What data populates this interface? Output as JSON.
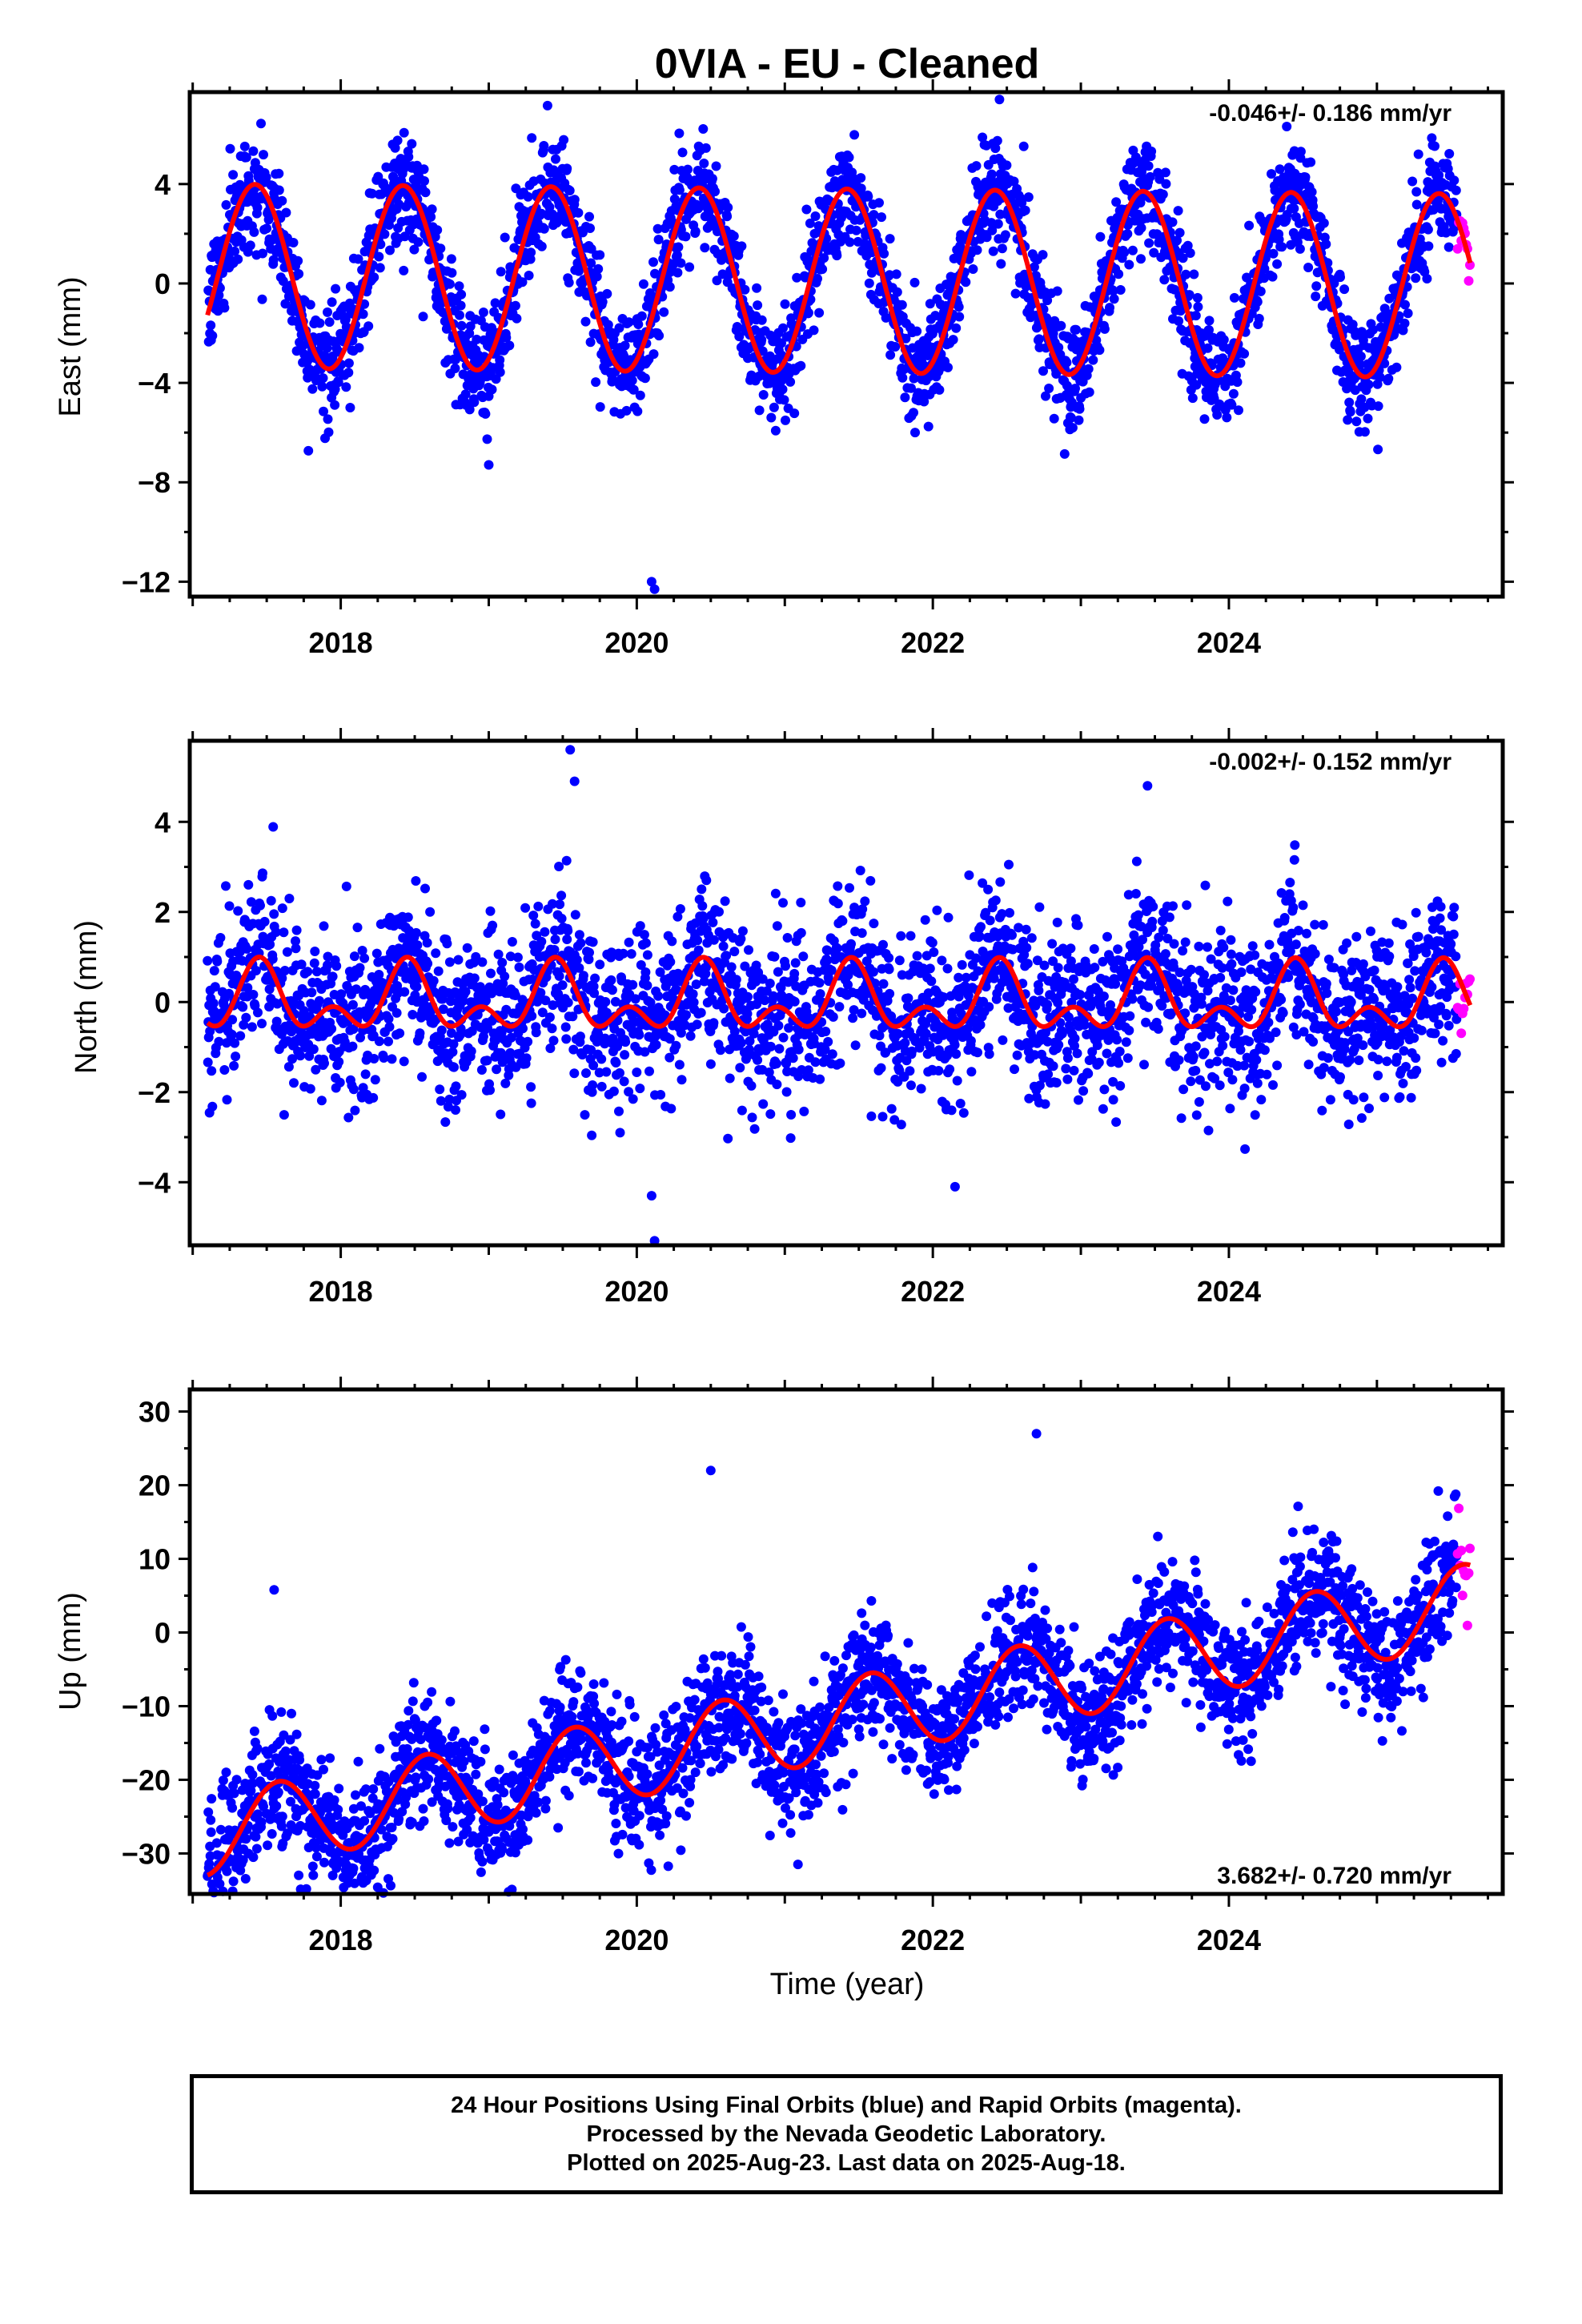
{
  "title": "0VIA  - EU - Cleaned",
  "xlabel": "Time (year)",
  "footer": {
    "line1": "24 Hour Positions Using Final Orbits (blue) and Rapid Orbits (magenta).",
    "line2": "Processed by the Nevada Geodetic Laboratory.",
    "line3": "Plotted on 2025-Aug-23. Last data on 2025-Aug-18."
  },
  "colors": {
    "final": "#0000ff",
    "rapid": "#ff00ff",
    "model": "#ff0000",
    "frame": "#000000"
  },
  "chart_data": [
    {
      "type": "scatter",
      "panel": "east",
      "ylabel": "East (mm)",
      "rate_text": "-0.046+/- 0.186 mm/yr",
      "rate_position": "top-right",
      "xlim": [
        2016.98,
        2025.85
      ],
      "ylim": [
        -12.6,
        7.7
      ],
      "yticks": [
        4,
        0,
        -4,
        -8,
        -12
      ],
      "ytick_labels": [
        "4",
        "0",
        "−4",
        "−8",
        "−12"
      ],
      "xticks": [
        2018,
        2020,
        2022,
        2024
      ],
      "xtick_labels": [
        "2018",
        "2020",
        "2022",
        "2024"
      ],
      "data_start": 2017.1,
      "final_end": 2025.54,
      "rapid_end": 2025.63,
      "model": {
        "offset": 0.3,
        "trend_mm_per_yr": -0.046,
        "annual_amp": 3.7,
        "annual_peak": 2017.42,
        "semiannual_amp": 0.0,
        "semiannual_peak": 2017.42
      },
      "scatter_sd_mm": 1.1,
      "series": [
        {
          "name": "Final Orbits",
          "color": "#0000ff"
        },
        {
          "name": "Rapid Orbits",
          "color": "#ff00ff"
        }
      ],
      "outliers": [
        [
          2020.1,
          -12.0
        ],
        [
          2020.12,
          -12.3
        ],
        [
          2022.45,
          7.4
        ],
        [
          2019.0,
          -7.3
        ]
      ]
    },
    {
      "type": "scatter",
      "panel": "north",
      "ylabel": "North (mm)",
      "rate_text": "-0.002+/- 0.152 mm/yr",
      "rate_position": "top-right",
      "xlim": [
        2016.98,
        2025.85
      ],
      "ylim": [
        -5.4,
        5.8
      ],
      "yticks": [
        4,
        2,
        0,
        -2,
        -4
      ],
      "ytick_labels": [
        "4",
        "2",
        "0",
        "−2",
        "−4"
      ],
      "xticks": [
        2018,
        2020,
        2022,
        2024
      ],
      "xtick_labels": [
        "2018",
        "2020",
        "2022",
        "2024"
      ],
      "data_start": 2017.1,
      "final_end": 2025.54,
      "rapid_end": 2025.63,
      "model": {
        "offset": 0.0,
        "trend_mm_per_yr": -0.002,
        "annual_amp": 0.55,
        "annual_peak": 2017.45,
        "semiannual_amp": 0.45,
        "semiannual_peak": 2017.45
      },
      "scatter_sd_mm": 0.9,
      "series": [
        {
          "name": "Final Orbits",
          "color": "#0000ff"
        },
        {
          "name": "Rapid Orbits",
          "color": "#ff00ff"
        }
      ],
      "outliers": [
        [
          2019.55,
          5.6
        ],
        [
          2019.58,
          4.9
        ],
        [
          2020.1,
          -4.3
        ],
        [
          2020.12,
          -5.3
        ],
        [
          2023.45,
          4.8
        ],
        [
          2022.15,
          -4.1
        ]
      ]
    },
    {
      "type": "scatter",
      "panel": "up",
      "ylabel": "Up (mm)",
      "rate_text": "3.682+/- 0.720 mm/yr",
      "rate_position": "bottom-right",
      "xlim": [
        2016.98,
        2025.85
      ],
      "ylim": [
        -35.5,
        33
      ],
      "yticks": [
        30,
        20,
        10,
        0,
        -10,
        -20,
        -30
      ],
      "ytick_labels": [
        "30",
        "20",
        "10",
        "0",
        "−10",
        "−20",
        "−30"
      ],
      "xticks": [
        2018,
        2020,
        2022,
        2024
      ],
      "xtick_labels": [
        "2018",
        "2020",
        "2022",
        "2024"
      ],
      "data_start": 2017.1,
      "final_end": 2025.54,
      "rapid_end": 2025.63,
      "model": {
        "offset": -27.5,
        "trend_mm_per_yr": 3.682,
        "annual_amp": 5.5,
        "annual_peak": 2017.58,
        "semiannual_amp": 0.0,
        "semiannual_peak": 2017.58
      },
      "scatter_sd_mm": 4.2,
      "series": [
        {
          "name": "Final Orbits",
          "color": "#0000ff"
        },
        {
          "name": "Rapid Orbits",
          "color": "#ff00ff"
        }
      ],
      "outliers": [
        [
          2017.55,
          5.8
        ],
        [
          2018.05,
          -34.0
        ],
        [
          2020.5,
          22.0
        ],
        [
          2022.7,
          27.0
        ],
        [
          2023.15,
          -15.5
        ],
        [
          2021.2,
          -22.0
        ]
      ]
    }
  ]
}
